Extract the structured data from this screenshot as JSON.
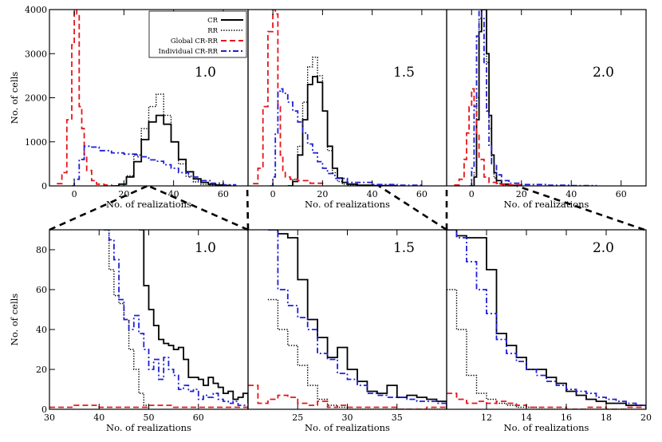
{
  "figure": {
    "legend": [
      {
        "label": "CR",
        "color": "#000000",
        "dash": "solid"
      },
      {
        "label": "RR",
        "color": "#000000",
        "dash": "dotted"
      },
      {
        "label": "Global CR-RR",
        "color": "#e8141a",
        "dash": "dashed"
      },
      {
        "label": "Individual CR-RR",
        "color": "#1f1fd6",
        "dash": "dashdot"
      }
    ]
  },
  "chart_data": [
    {
      "type": "line",
      "panel": "top-1",
      "annotation": "1.0",
      "xlabel": "No. of realizations",
      "ylabel": "No. of cells",
      "xlim": [
        -10,
        70
      ],
      "ylim": [
        0,
        4000
      ],
      "xticks": [
        0,
        20,
        40,
        60
      ],
      "yticks": [
        0,
        1000,
        2000,
        3000,
        4000
      ],
      "legend_position": "top-right",
      "series": [
        {
          "name": "CR",
          "x": [
            15,
            18,
            21,
            24,
            27,
            30,
            33,
            36,
            39,
            42,
            45,
            48,
            51,
            54,
            57,
            60,
            63
          ],
          "y": [
            0,
            40,
            200,
            550,
            1050,
            1450,
            1600,
            1400,
            1000,
            600,
            320,
            160,
            80,
            40,
            20,
            10,
            5
          ]
        },
        {
          "name": "RR",
          "x": [
            15,
            18,
            21,
            24,
            27,
            30,
            33,
            36,
            39,
            42,
            45,
            48,
            51,
            54,
            57,
            60,
            63
          ],
          "y": [
            0,
            40,
            230,
            700,
            1300,
            1800,
            2080,
            1600,
            1000,
            500,
            220,
            90,
            35,
            15,
            5,
            2,
            0
          ]
        },
        {
          "name": "Global CR-RR",
          "x": [
            -7,
            -5,
            -3,
            -1,
            0,
            1,
            2,
            3,
            4,
            5,
            7,
            9,
            12,
            15
          ],
          "y": [
            50,
            300,
            1500,
            3200,
            4000,
            3900,
            1800,
            1300,
            700,
            350,
            120,
            40,
            20,
            10
          ]
        },
        {
          "name": "Individual CR-RR",
          "x": [
            -1,
            0,
            2,
            4,
            6,
            10,
            15,
            20,
            25,
            30,
            33,
            36,
            39,
            42,
            46,
            50,
            55,
            60,
            65
          ],
          "y": [
            0,
            150,
            600,
            900,
            880,
            800,
            750,
            720,
            660,
            590,
            560,
            480,
            400,
            300,
            200,
            120,
            60,
            25,
            10
          ]
        }
      ]
    },
    {
      "type": "line",
      "panel": "top-2",
      "annotation": "1.5",
      "xlabel": "No. of realizations",
      "ylabel": "",
      "xlim": [
        -10,
        70
      ],
      "ylim": [
        0,
        4000
      ],
      "xticks": [
        0,
        20,
        40,
        60
      ],
      "yticks": [],
      "series": [
        {
          "name": "CR",
          "x": [
            6,
            8,
            10,
            12,
            14,
            16,
            18,
            20,
            22,
            24,
            26,
            28,
            30,
            34,
            40,
            50
          ],
          "y": [
            0,
            100,
            700,
            1500,
            2300,
            2480,
            2350,
            1700,
            900,
            400,
            180,
            80,
            40,
            15,
            5,
            0
          ]
        },
        {
          "name": "RR",
          "x": [
            6,
            8,
            10,
            12,
            14,
            16,
            18,
            20,
            22,
            24,
            26,
            28,
            30,
            34
          ],
          "y": [
            0,
            150,
            900,
            1900,
            2700,
            2920,
            2500,
            1700,
            800,
            300,
            100,
            40,
            15,
            0
          ]
        },
        {
          "name": "Global CR-RR",
          "x": [
            -8,
            -6,
            -4,
            -2,
            0,
            1,
            2,
            3,
            4,
            5,
            7,
            10,
            15,
            20
          ],
          "y": [
            50,
            400,
            1800,
            3500,
            4000,
            3900,
            1800,
            700,
            350,
            200,
            150,
            120,
            60,
            20
          ]
        },
        {
          "name": "Individual CR-RR",
          "x": [
            -1,
            0,
            1,
            2,
            3,
            4,
            6,
            8,
            10,
            12,
            14,
            16,
            18,
            20,
            22,
            25,
            30,
            40,
            50,
            60
          ],
          "y": [
            0,
            200,
            1200,
            2150,
            2200,
            2100,
            1900,
            1700,
            1450,
            1200,
            950,
            750,
            550,
            400,
            280,
            170,
            80,
            30,
            15,
            5
          ]
        }
      ]
    },
    {
      "type": "line",
      "panel": "top-3",
      "annotation": "2.0",
      "xlabel": "No. of realizations",
      "ylabel": "",
      "xlim": [
        -10,
        70
      ],
      "ylim": [
        0,
        4000
      ],
      "xticks": [
        0,
        20,
        40,
        60
      ],
      "yticks": [],
      "series": [
        {
          "name": "CR",
          "x": [
            0,
            1,
            2,
            3,
            4,
            5,
            6,
            7,
            8,
            9,
            10,
            12,
            15,
            20
          ],
          "y": [
            0,
            200,
            1500,
            3500,
            4000,
            4000,
            3000,
            1600,
            700,
            300,
            120,
            40,
            10,
            0
          ]
        },
        {
          "name": "RR",
          "x": [
            0,
            1,
            2,
            3,
            4,
            5,
            6,
            7,
            8,
            9,
            10,
            12,
            15
          ],
          "y": [
            0,
            300,
            2000,
            3800,
            4000,
            4000,
            2800,
            1300,
            500,
            180,
            60,
            15,
            0
          ]
        },
        {
          "name": "Global CR-RR",
          "x": [
            -7,
            -5,
            -3,
            -2,
            -1,
            0,
            1,
            2,
            3,
            5,
            7,
            10,
            15,
            20
          ],
          "y": [
            20,
            150,
            600,
            1200,
            1800,
            2200,
            1800,
            1200,
            600,
            200,
            80,
            40,
            20,
            10
          ]
        },
        {
          "name": "Individual CR-RR",
          "x": [
            -1,
            0,
            1,
            2,
            3,
            4,
            5,
            6,
            7,
            8,
            10,
            12,
            15,
            20,
            30,
            40,
            50
          ],
          "y": [
            0,
            400,
            1800,
            3400,
            4000,
            3800,
            2800,
            1700,
            900,
            500,
            250,
            120,
            60,
            30,
            15,
            8,
            3
          ]
        }
      ]
    },
    {
      "type": "line",
      "panel": "bottom-1",
      "annotation": "1.0",
      "xlabel": "No. of realizations",
      "ylabel": "No. of cells",
      "xlim": [
        30,
        70
      ],
      "ylim": [
        0,
        90
      ],
      "xticks": [
        30,
        40,
        50,
        60
      ],
      "yticks": [
        0,
        20,
        40,
        60,
        80
      ],
      "series": [
        {
          "name": "CR",
          "x": [
            48,
            49,
            50,
            51,
            52,
            53,
            54,
            55,
            56,
            57,
            58,
            59,
            60,
            61,
            62,
            63,
            64,
            65,
            66,
            67,
            68,
            69,
            70
          ],
          "y": [
            90,
            62,
            50,
            42,
            35,
            33,
            32,
            30,
            31,
            25,
            16,
            16,
            15,
            12,
            16,
            13,
            11,
            8,
            9,
            5,
            6,
            8,
            3
          ]
        },
        {
          "name": "RR",
          "x": [
            41,
            42,
            43,
            44,
            45,
            46,
            47,
            48,
            49,
            50
          ],
          "y": [
            90,
            70,
            57,
            53,
            45,
            30,
            20,
            8,
            2,
            0
          ]
        },
        {
          "name": "Global CR-RR",
          "x": [
            30,
            35,
            40,
            45,
            50,
            55,
            60,
            65,
            70
          ],
          "y": [
            1,
            2,
            1,
            1,
            2,
            1,
            1,
            1,
            0
          ]
        },
        {
          "name": "Individual CR-RR",
          "x": [
            41,
            42,
            43,
            44,
            45,
            46,
            47,
            48,
            49,
            50,
            51,
            52,
            53,
            54,
            55,
            56,
            57,
            58,
            59,
            60,
            61,
            62,
            63,
            64,
            65,
            66,
            67,
            68,
            69,
            70
          ],
          "y": [
            90,
            85,
            75,
            55,
            45,
            40,
            47,
            38,
            30,
            20,
            25,
            15,
            26,
            20,
            17,
            10,
            12,
            9,
            10,
            5,
            7,
            6,
            8,
            5,
            4,
            3,
            4,
            2,
            2,
            0
          ]
        }
      ]
    },
    {
      "type": "line",
      "panel": "bottom-2",
      "annotation": "1.5",
      "xlabel": "No. of realizations",
      "ylabel": "",
      "xlim": [
        20,
        40
      ],
      "ylim": [
        0,
        90
      ],
      "xticks": [
        25,
        30,
        35
      ],
      "yticks": [],
      "series": [
        {
          "name": "CR",
          "x": [
            22,
            23,
            24,
            25,
            26,
            27,
            28,
            29,
            30,
            31,
            32,
            33,
            34,
            35,
            36,
            37,
            38,
            39,
            40
          ],
          "y": [
            90,
            88,
            86,
            65,
            45,
            36,
            26,
            31,
            20,
            14,
            9,
            8,
            12,
            6,
            7,
            6,
            5,
            4,
            0
          ]
        },
        {
          "name": "RR",
          "x": [
            22,
            23,
            24,
            25,
            26,
            27,
            28,
            29,
            30,
            31,
            32,
            33,
            34,
            35,
            36,
            37,
            38,
            39,
            40
          ],
          "y": [
            55,
            40,
            32,
            22,
            12,
            5,
            2,
            1,
            0,
            0,
            0,
            0,
            0,
            0,
            0,
            0,
            0,
            0,
            0
          ]
        },
        {
          "name": "Global CR-RR",
          "x": [
            20,
            21,
            22,
            23,
            24,
            25,
            26,
            27,
            28,
            29,
            30,
            32,
            35,
            38,
            40
          ],
          "y": [
            12,
            3,
            5,
            7,
            6,
            3,
            2,
            4,
            1,
            2,
            1,
            1,
            0,
            1,
            0
          ]
        },
        {
          "name": "Individual CR-RR",
          "x": [
            22,
            23,
            24,
            25,
            26,
            27,
            28,
            29,
            30,
            31,
            32,
            33,
            34,
            35,
            36,
            37,
            38,
            39,
            40
          ],
          "y": [
            90,
            60,
            52,
            46,
            40,
            28,
            25,
            18,
            15,
            12,
            8,
            7,
            6,
            6,
            5,
            4,
            4,
            3,
            0
          ]
        }
      ]
    },
    {
      "type": "line",
      "panel": "bottom-3",
      "annotation": "2.0",
      "xlabel": "No. of realizations",
      "ylabel": "",
      "xlim": [
        10,
        20
      ],
      "ylim": [
        0,
        90
      ],
      "xticks": [
        12,
        14,
        16,
        18,
        20
      ],
      "yticks": [],
      "series": [
        {
          "name": "CR",
          "x": [
            10,
            10.5,
            11,
            11.5,
            12,
            12.5,
            13,
            13.5,
            14,
            14.5,
            15,
            15.5,
            16,
            16.5,
            17,
            17.5,
            18,
            18.5,
            19,
            19.5,
            20
          ],
          "y": [
            90,
            87,
            86,
            86,
            70,
            38,
            32,
            26,
            20,
            20,
            16,
            13,
            9,
            7,
            5,
            4,
            3,
            3,
            2,
            2,
            0
          ]
        },
        {
          "name": "RR",
          "x": [
            10,
            10.5,
            11,
            11.5,
            12,
            12.5,
            13,
            13.5,
            14,
            14.5,
            15,
            16,
            17,
            18,
            19,
            20
          ],
          "y": [
            60,
            40,
            17,
            8,
            5,
            3,
            2,
            1,
            1,
            0,
            0,
            0,
            0,
            0,
            0,
            0
          ]
        },
        {
          "name": "Global CR-RR",
          "x": [
            10,
            10.5,
            11,
            11.5,
            12,
            12.5,
            13,
            13.5,
            14,
            15,
            16,
            17,
            18,
            19,
            20
          ],
          "y": [
            8,
            5,
            3,
            4,
            3,
            4,
            3,
            2,
            1,
            1,
            0,
            1,
            0,
            1,
            0
          ]
        },
        {
          "name": "Individual CR-RR",
          "x": [
            10,
            10.5,
            11,
            11.5,
            12,
            12.5,
            13,
            13.5,
            14,
            14.5,
            15,
            15.5,
            16,
            16.5,
            17,
            17.5,
            18,
            18.5,
            19,
            19.5,
            20
          ],
          "y": [
            90,
            86,
            74,
            60,
            48,
            35,
            28,
            24,
            20,
            17,
            14,
            12,
            10,
            9,
            8,
            6,
            5,
            4,
            3,
            2,
            2
          ]
        }
      ]
    }
  ]
}
